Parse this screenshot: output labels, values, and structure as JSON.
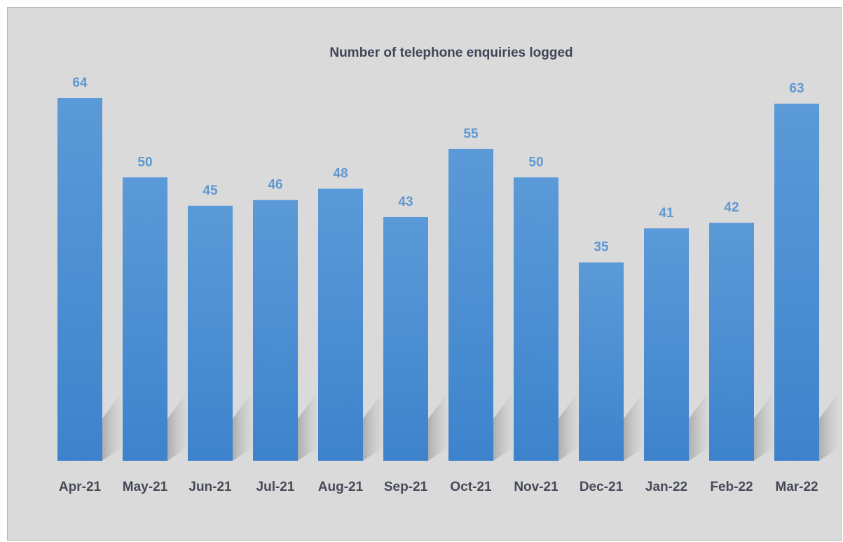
{
  "chart_data": {
    "type": "bar",
    "title": "Number of telephone enquiries logged",
    "xlabel": "",
    "ylabel": "",
    "categories": [
      "Apr-21",
      "May-21",
      "Jun-21",
      "Jul-21",
      "Aug-21",
      "Sep-21",
      "Oct-21",
      "Nov-21",
      "Dec-21",
      "Jan-22",
      "Feb-22",
      "Mar-22"
    ],
    "values": [
      64,
      50,
      45,
      46,
      48,
      43,
      55,
      50,
      35,
      41,
      42,
      63
    ],
    "ylim": [
      0,
      64
    ],
    "grid": false,
    "legend": "none",
    "colors": {
      "bar_top": "#5b9ad8",
      "bar_bottom": "#3d83cc",
      "data_label": "#5f97d2",
      "title": "#3f4657",
      "tick_label": "#454a56",
      "background": "#dadada"
    }
  }
}
